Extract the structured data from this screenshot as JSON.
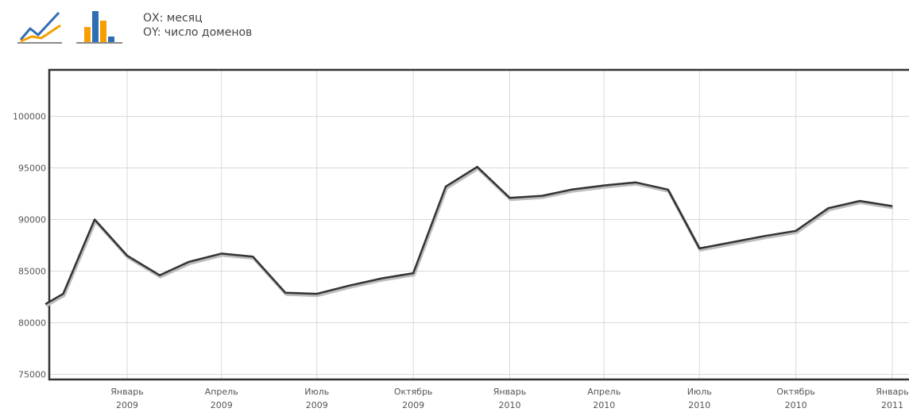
{
  "toolbar": {
    "line_chart_icon": "line-chart-icon",
    "bar_chart_icon": "bar-chart-icon",
    "ox_label": "ОХ: месяц",
    "oy_label": "ОY: число доменов"
  },
  "colors": {
    "line": "#333333",
    "grid": "#d9d9d9",
    "frame": "#333333",
    "icon_blue": "#2f6db5",
    "icon_orange": "#f5a000"
  },
  "chart_data": {
    "type": "line",
    "xlabel": "месяц",
    "ylabel": "число доменов",
    "ylim": [
      74500,
      104500
    ],
    "y_ticks": [
      75000,
      80000,
      85000,
      90000,
      95000,
      100000
    ],
    "y_tick_labels": [
      "75000",
      "80000",
      "85000",
      "90000",
      "95000",
      "100000"
    ],
    "grid": true,
    "x_ticks": [
      {
        "month": "2009-01",
        "line1": "Январь",
        "line2": "2009"
      },
      {
        "month": "2009-04",
        "line1": "Апрель",
        "line2": "2009"
      },
      {
        "month": "2009-07",
        "line1": "Июль",
        "line2": "2009"
      },
      {
        "month": "2009-10",
        "line1": "Октябрь",
        "line2": "2009"
      },
      {
        "month": "2010-01",
        "line1": "Январь",
        "line2": "2010"
      },
      {
        "month": "2010-04",
        "line1": "Апрель",
        "line2": "2010"
      },
      {
        "month": "2010-07",
        "line1": "Июль",
        "line2": "2010"
      },
      {
        "month": "2010-10",
        "line1": "Октябрь",
        "line2": "2010"
      },
      {
        "month": "2011-01",
        "line1": "Январь",
        "line2": "2011"
      }
    ],
    "series": [
      {
        "points": [
          {
            "x": "2008-10-15",
            "y": 81800
          },
          {
            "x": "2008-11-01",
            "y": 82800
          },
          {
            "x": "2008-12-01",
            "y": 90000
          },
          {
            "x": "2009-01-01",
            "y": 86500
          },
          {
            "x": "2009-02-01",
            "y": 84600
          },
          {
            "x": "2009-03-01",
            "y": 85900
          },
          {
            "x": "2009-04-01",
            "y": 86700
          },
          {
            "x": "2009-05-01",
            "y": 86400
          },
          {
            "x": "2009-06-01",
            "y": 82900
          },
          {
            "x": "2009-07-01",
            "y": 82800
          },
          {
            "x": "2009-08-01",
            "y": 83600
          },
          {
            "x": "2009-09-01",
            "y": 84300
          },
          {
            "x": "2009-10-01",
            "y": 84800
          },
          {
            "x": "2009-11-01",
            "y": 93200
          },
          {
            "x": "2009-12-01",
            "y": 95100
          },
          {
            "x": "2010-01-01",
            "y": 92100
          },
          {
            "x": "2010-02-01",
            "y": 92300
          },
          {
            "x": "2010-03-01",
            "y": 92900
          },
          {
            "x": "2010-04-01",
            "y": 93300
          },
          {
            "x": "2010-05-01",
            "y": 93600
          },
          {
            "x": "2010-06-01",
            "y": 92900
          },
          {
            "x": "2010-07-01",
            "y": 87200
          },
          {
            "x": "2010-08-01",
            "y": 87800
          },
          {
            "x": "2010-09-01",
            "y": 88400
          },
          {
            "x": "2010-10-01",
            "y": 88900
          },
          {
            "x": "2010-11-01",
            "y": 91100
          },
          {
            "x": "2010-12-01",
            "y": 91800
          },
          {
            "x": "2011-01-01",
            "y": 91300
          }
        ]
      }
    ]
  }
}
